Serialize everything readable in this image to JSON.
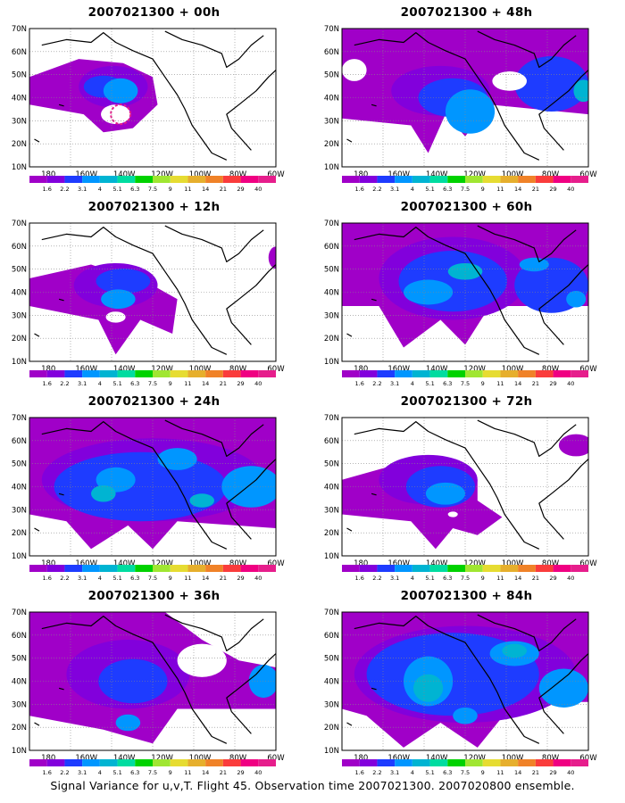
{
  "figure": {
    "caption": "Signal Variance for u,v,T. Flight 45. Observation time 2007021300. 2007020800 ensemble.",
    "lat_labels": [
      "70N",
      "60N",
      "50N",
      "40N",
      "30N",
      "20N",
      "10N"
    ],
    "lon_labels": [
      "180",
      "160W",
      "140W",
      "120W",
      "100W",
      "80W",
      "60W"
    ],
    "colorbar": {
      "levels": [
        "1.6",
        "2.2",
        "3.1",
        "4",
        "5.1",
        "6.3",
        "7.5",
        "9",
        "11",
        "14",
        "21",
        "29",
        "40"
      ],
      "colors": [
        "#a000c8",
        "#8200dc",
        "#1e3cff",
        "#0096ff",
        "#00b4d2",
        "#00dca0",
        "#00d200",
        "#a0e632",
        "#e6dc32",
        "#e6af2d",
        "#f08228",
        "#fa3c3c",
        "#f00082",
        "#e61e8c"
      ]
    },
    "panels": [
      {
        "title": "2007021300 + 00h"
      },
      {
        "title": "2007021300 + 48h"
      },
      {
        "title": "2007021300 + 12h"
      },
      {
        "title": "2007021300 + 60h"
      },
      {
        "title": "2007021300 + 24h"
      },
      {
        "title": "2007021300 + 72h"
      },
      {
        "title": "2007021300 + 36h"
      },
      {
        "title": "2007021300 + 84h"
      }
    ]
  }
}
